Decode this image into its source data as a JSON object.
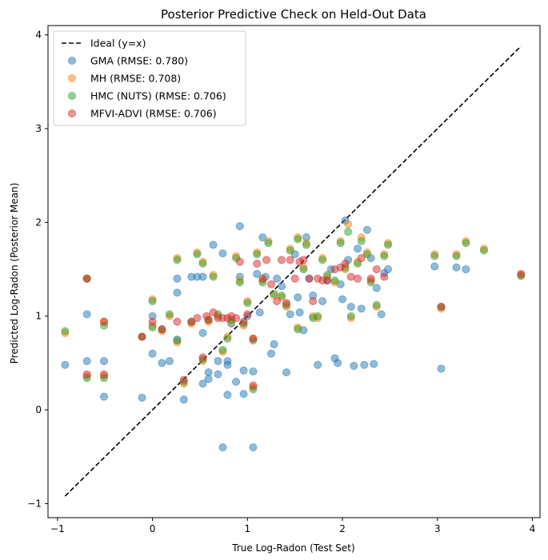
{
  "chart_data": {
    "type": "scatter",
    "title": "Posterior Predictive Check on Held-Out Data",
    "xlabel": "True Log-Radon (Test Set)",
    "ylabel": "Predicted Log-Radon (Posterior Mean)",
    "xlim": [
      -1.1,
      4.08
    ],
    "ylim": [
      -1.15,
      4.1
    ],
    "xticks": [
      -1,
      0,
      1,
      2,
      3,
      4
    ],
    "yticks": [
      -1,
      0,
      1,
      2,
      3,
      4
    ],
    "grid": false,
    "legend_position": "top-left",
    "ideal_line": {
      "label": "Ideal (y=x)",
      "from": [
        -0.92,
        -0.92
      ],
      "to": [
        3.88,
        3.88
      ],
      "color": "#000000"
    },
    "series": [
      {
        "name": "GMA (RMSE: 0.780)",
        "color": "#1f77b4",
        "points": [
          [
            -0.92,
            0.48
          ],
          [
            -0.69,
            1.02
          ],
          [
            -0.69,
            0.52
          ],
          [
            -0.51,
            0.52
          ],
          [
            -0.51,
            0.14
          ],
          [
            -0.11,
            0.13
          ],
          [
            0.0,
            1.0
          ],
          [
            0.0,
            0.6
          ],
          [
            0.1,
            0.5
          ],
          [
            0.18,
            0.52
          ],
          [
            0.26,
            1.4
          ],
          [
            0.26,
            1.25
          ],
          [
            0.26,
            0.75
          ],
          [
            0.33,
            0.11
          ],
          [
            0.41,
            1.42
          ],
          [
            0.47,
            1.42
          ],
          [
            0.53,
            1.42
          ],
          [
            0.53,
            0.82
          ],
          [
            0.53,
            0.28
          ],
          [
            0.59,
            0.4
          ],
          [
            0.59,
            0.33
          ],
          [
            0.64,
            1.76
          ],
          [
            0.69,
            0.52
          ],
          [
            0.69,
            0.38
          ],
          [
            0.74,
            1.67
          ],
          [
            0.79,
            0.52
          ],
          [
            0.79,
            0.48
          ],
          [
            0.79,
            0.16
          ],
          [
            0.83,
            0.92
          ],
          [
            0.88,
            0.3
          ],
          [
            0.92,
            1.96
          ],
          [
            0.92,
            1.42
          ],
          [
            0.96,
            0.42
          ],
          [
            0.96,
            0.17
          ],
          [
            1.0,
            1.0
          ],
          [
            1.06,
            0.41
          ],
          [
            1.06,
            -0.4
          ],
          [
            0.74,
            -0.4
          ],
          [
            1.1,
            1.45
          ],
          [
            1.13,
            1.04
          ],
          [
            1.16,
            1.84
          ],
          [
            1.19,
            1.42
          ],
          [
            1.25,
            0.6
          ],
          [
            1.28,
            0.7
          ],
          [
            1.31,
            1.4
          ],
          [
            1.36,
            1.32
          ],
          [
            1.41,
            0.4
          ],
          [
            1.45,
            1.02
          ],
          [
            1.5,
            1.66
          ],
          [
            1.53,
            1.2
          ],
          [
            1.55,
            1.04
          ],
          [
            1.59,
            0.85
          ],
          [
            1.62,
            1.84
          ],
          [
            1.65,
            1.4
          ],
          [
            1.69,
            1.22
          ],
          [
            1.74,
            0.48
          ],
          [
            1.79,
            1.16
          ],
          [
            1.84,
            1.38
          ],
          [
            1.88,
            1.5
          ],
          [
            1.92,
            0.55
          ],
          [
            1.95,
            0.5
          ],
          [
            1.98,
            1.34
          ],
          [
            2.0,
            1.18
          ],
          [
            2.03,
            2.02
          ],
          [
            2.06,
            1.6
          ],
          [
            2.09,
            1.1
          ],
          [
            2.12,
            0.47
          ],
          [
            2.16,
            1.72
          ],
          [
            2.2,
            1.08
          ],
          [
            2.23,
            0.48
          ],
          [
            2.26,
            1.92
          ],
          [
            2.3,
            1.62
          ],
          [
            2.33,
            0.49
          ],
          [
            2.36,
            1.3
          ],
          [
            2.41,
            1.02
          ],
          [
            2.44,
            1.46
          ],
          [
            2.48,
            1.5
          ],
          [
            2.97,
            1.53
          ],
          [
            3.04,
            0.44
          ],
          [
            3.2,
            1.52
          ],
          [
            3.3,
            1.5
          ]
        ]
      },
      {
        "name": "MH (RMSE: 0.708)",
        "color": "#ff7f0e",
        "points": [
          [
            -0.92,
            0.82
          ],
          [
            -0.69,
            1.4
          ],
          [
            -0.69,
            0.36
          ],
          [
            -0.51,
            0.94
          ],
          [
            -0.51,
            0.36
          ],
          [
            -0.11,
            0.78
          ],
          [
            0.0,
            1.18
          ],
          [
            0.0,
            0.9
          ],
          [
            0.1,
            0.84
          ],
          [
            0.18,
            1.0
          ],
          [
            0.26,
            1.62
          ],
          [
            0.26,
            0.72
          ],
          [
            0.33,
            0.28
          ],
          [
            0.41,
            0.92
          ],
          [
            0.47,
            1.68
          ],
          [
            0.53,
            1.58
          ],
          [
            0.53,
            0.52
          ],
          [
            0.59,
            0.94
          ],
          [
            0.64,
            1.44
          ],
          [
            0.69,
            1.0
          ],
          [
            0.74,
            0.62
          ],
          [
            0.79,
            0.78
          ],
          [
            0.83,
            0.94
          ],
          [
            0.88,
            1.64
          ],
          [
            0.92,
            1.38
          ],
          [
            0.96,
            0.9
          ],
          [
            1.0,
            1.16
          ],
          [
            1.06,
            0.24
          ],
          [
            1.06,
            0.76
          ],
          [
            1.1,
            1.68
          ],
          [
            1.16,
            1.38
          ],
          [
            1.22,
            1.8
          ],
          [
            1.28,
            1.22
          ],
          [
            1.36,
            1.2
          ],
          [
            1.41,
            1.1
          ],
          [
            1.45,
            1.72
          ],
          [
            1.53,
            1.84
          ],
          [
            1.53,
            0.88
          ],
          [
            1.59,
            1.52
          ],
          [
            1.62,
            1.78
          ],
          [
            1.69,
            1.0
          ],
          [
            1.74,
            0.98
          ],
          [
            1.79,
            1.62
          ],
          [
            1.84,
            1.42
          ],
          [
            1.92,
            1.36
          ],
          [
            1.98,
            1.8
          ],
          [
            2.03,
            1.5
          ],
          [
            2.06,
            1.98
          ],
          [
            2.09,
            0.98
          ],
          [
            2.16,
            1.58
          ],
          [
            2.2,
            1.84
          ],
          [
            2.26,
            1.68
          ],
          [
            2.3,
            1.38
          ],
          [
            2.36,
            1.1
          ],
          [
            2.44,
            1.66
          ],
          [
            2.48,
            1.78
          ],
          [
            2.97,
            1.66
          ],
          [
            3.04,
            1.08
          ],
          [
            3.2,
            1.66
          ],
          [
            3.3,
            1.8
          ],
          [
            3.49,
            1.72
          ],
          [
            3.88,
            1.44
          ]
        ]
      },
      {
        "name": "HMC (NUTS) (RMSE: 0.706)",
        "color": "#2ca02c",
        "points": [
          [
            -0.92,
            0.84
          ],
          [
            -0.69,
            1.4
          ],
          [
            -0.69,
            0.34
          ],
          [
            -0.51,
            0.9
          ],
          [
            -0.51,
            0.34
          ],
          [
            -0.11,
            0.78
          ],
          [
            0.0,
            1.16
          ],
          [
            0.0,
            0.88
          ],
          [
            0.1,
            0.86
          ],
          [
            0.18,
            1.02
          ],
          [
            0.26,
            1.6
          ],
          [
            0.26,
            0.74
          ],
          [
            0.33,
            0.3
          ],
          [
            0.41,
            0.94
          ],
          [
            0.47,
            1.66
          ],
          [
            0.53,
            1.56
          ],
          [
            0.53,
            0.54
          ],
          [
            0.59,
            0.96
          ],
          [
            0.64,
            1.42
          ],
          [
            0.69,
            1.02
          ],
          [
            0.74,
            0.64
          ],
          [
            0.79,
            0.76
          ],
          [
            0.83,
            0.96
          ],
          [
            0.88,
            1.62
          ],
          [
            0.92,
            1.36
          ],
          [
            0.96,
            0.92
          ],
          [
            1.0,
            1.14
          ],
          [
            1.06,
            0.22
          ],
          [
            1.06,
            0.74
          ],
          [
            1.1,
            1.66
          ],
          [
            1.16,
            1.36
          ],
          [
            1.22,
            1.78
          ],
          [
            1.28,
            1.24
          ],
          [
            1.36,
            1.22
          ],
          [
            1.41,
            1.12
          ],
          [
            1.45,
            1.7
          ],
          [
            1.53,
            1.82
          ],
          [
            1.53,
            0.86
          ],
          [
            1.59,
            1.5
          ],
          [
            1.62,
            1.76
          ],
          [
            1.69,
            0.98
          ],
          [
            1.74,
            1.0
          ],
          [
            1.79,
            1.6
          ],
          [
            1.84,
            1.44
          ],
          [
            1.92,
            1.38
          ],
          [
            1.98,
            1.78
          ],
          [
            2.03,
            1.52
          ],
          [
            2.06,
            1.9
          ],
          [
            2.09,
            1.0
          ],
          [
            2.16,
            1.56
          ],
          [
            2.2,
            1.8
          ],
          [
            2.26,
            1.66
          ],
          [
            2.3,
            1.36
          ],
          [
            2.36,
            1.12
          ],
          [
            2.44,
            1.64
          ],
          [
            2.48,
            1.76
          ],
          [
            2.97,
            1.64
          ],
          [
            3.04,
            1.1
          ],
          [
            3.2,
            1.64
          ],
          [
            3.3,
            1.78
          ],
          [
            3.49,
            1.7
          ],
          [
            3.88,
            1.43
          ]
        ]
      },
      {
        "name": "MFVI-ADVI (RMSE: 0.706)",
        "color": "#d62728",
        "points": [
          [
            -0.69,
            1.4
          ],
          [
            -0.69,
            0.38
          ],
          [
            -0.51,
            0.94
          ],
          [
            -0.51,
            0.38
          ],
          [
            -0.11,
            0.78
          ],
          [
            0.0,
            0.94
          ],
          [
            0.1,
            0.86
          ],
          [
            0.26,
            0.94
          ],
          [
            0.33,
            0.32
          ],
          [
            0.41,
            0.94
          ],
          [
            0.47,
            0.98
          ],
          [
            0.53,
            0.56
          ],
          [
            0.57,
            1.0
          ],
          [
            0.59,
            0.96
          ],
          [
            0.64,
            1.04
          ],
          [
            0.69,
            0.98
          ],
          [
            0.74,
            0.98
          ],
          [
            0.79,
            0.98
          ],
          [
            0.83,
            1.0
          ],
          [
            0.88,
            0.98
          ],
          [
            0.92,
            1.58
          ],
          [
            0.96,
            0.94
          ],
          [
            1.0,
            1.02
          ],
          [
            1.06,
            0.76
          ],
          [
            1.06,
            0.26
          ],
          [
            1.1,
            1.56
          ],
          [
            1.16,
            1.4
          ],
          [
            1.2,
            1.6
          ],
          [
            1.25,
            1.34
          ],
          [
            1.31,
            1.16
          ],
          [
            1.36,
            1.6
          ],
          [
            1.41,
            1.14
          ],
          [
            1.45,
            1.6
          ],
          [
            1.5,
            1.4
          ],
          [
            1.55,
            1.58
          ],
          [
            1.59,
            1.6
          ],
          [
            1.65,
            1.4
          ],
          [
            1.69,
            1.16
          ],
          [
            1.74,
            1.4
          ],
          [
            1.79,
            1.38
          ],
          [
            1.84,
            1.38
          ],
          [
            1.92,
            1.5
          ],
          [
            1.98,
            1.52
          ],
          [
            2.03,
            1.56
          ],
          [
            2.09,
            1.42
          ],
          [
            2.16,
            1.4
          ],
          [
            2.2,
            1.62
          ],
          [
            2.3,
            1.4
          ],
          [
            2.36,
            1.5
          ],
          [
            2.44,
            1.42
          ],
          [
            3.04,
            1.1
          ],
          [
            3.88,
            1.45
          ]
        ]
      }
    ]
  }
}
